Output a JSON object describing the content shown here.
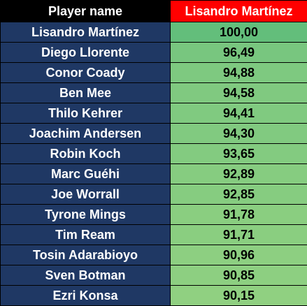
{
  "table": {
    "headers": [
      "Player name",
      "Lisandro Martínez"
    ],
    "rows": [
      {
        "player": "Lisandro Martínez",
        "value": "100,00",
        "color": "#63be7b"
      },
      {
        "player": "Diego Llorente",
        "value": "96,49",
        "color": "#78c67f"
      },
      {
        "player": "Conor Coady",
        "value": "94,88",
        "color": "#7ec980"
      },
      {
        "player": "Ben Mee",
        "value": "94,58",
        "color": "#80c980"
      },
      {
        "player": "Thilo Kehrer",
        "value": "94,41",
        "color": "#80ca80"
      },
      {
        "player": "Joachim Andersen",
        "value": "94,30",
        "color": "#81ca80"
      },
      {
        "player": "Robin Koch",
        "value": "93,65",
        "color": "#83cb80"
      },
      {
        "player": "Marc Guéhi",
        "value": "92,89",
        "color": "#86cc80"
      },
      {
        "player": "Joe Worrall",
        "value": "92,85",
        "color": "#86cc80"
      },
      {
        "player": "Tyrone Mings",
        "value": "91,78",
        "color": "#8ace80"
      },
      {
        "player": "Tim Ream",
        "value": "91,71",
        "color": "#8ace80"
      },
      {
        "player": "Tosin Adarabioyo",
        "value": "90,96",
        "color": "#8dcf81"
      },
      {
        "player": "Sven Botman",
        "value": "90,85",
        "color": "#8dcf81"
      },
      {
        "player": "Ezri Konsa",
        "value": "90,15",
        "color": "#90d081"
      }
    ]
  },
  "colors": {
    "header_name_bg": "#000000",
    "header_value_bg": "#ff0000",
    "name_cell_bg": "#1f3864",
    "name_text": "#ffffff"
  }
}
